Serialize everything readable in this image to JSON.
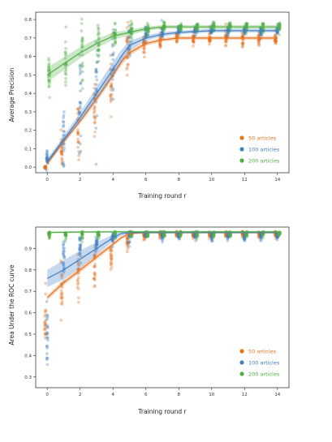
{
  "colors": {
    "s50": "#e8711c",
    "s100": "#3f7fc3",
    "s200": "#4fae43"
  },
  "chart_data": [
    {
      "type": "scatter",
      "title": "",
      "xlabel": "Training round r",
      "ylabel": "Average Precision",
      "xlim": [
        -0.7,
        14.7
      ],
      "ylim": [
        -0.03,
        0.84
      ],
      "xticks": [
        "0",
        "2",
        "4",
        "6",
        "8",
        "10",
        "12",
        "14"
      ],
      "xtick_values": [
        0,
        2,
        4,
        6,
        8,
        10,
        12,
        14
      ],
      "yticks": [
        "0.0",
        "0.1",
        "0.2",
        "0.3",
        "0.4",
        "0.5",
        "0.6",
        "0.7",
        "0.8"
      ],
      "ytick_values": [
        0.0,
        0.1,
        0.2,
        0.3,
        0.4,
        0.5,
        0.6,
        0.7,
        0.8
      ],
      "grid": false,
      "legend_position": "lower-right",
      "series": [
        {
          "name": "50 articles",
          "color": "#e8711c",
          "x": [
            0,
            1,
            2,
            3,
            4,
            5,
            6,
            7,
            8,
            9,
            10,
            11,
            12,
            13,
            14
          ],
          "center": [
            0.0,
            0.1,
            0.2,
            0.3,
            0.45,
            0.62,
            0.67,
            0.69,
            0.7,
            0.7,
            0.7,
            0.7,
            0.7,
            0.7,
            0.7
          ],
          "spread": [
            0.01,
            0.1,
            0.16,
            0.2,
            0.2,
            0.14,
            0.06,
            0.05,
            0.04,
            0.04,
            0.04,
            0.04,
            0.04,
            0.04,
            0.04
          ],
          "trend_x": [
            0,
            1,
            2,
            3,
            4,
            4.5,
            5,
            6,
            7,
            8,
            10,
            12,
            14
          ],
          "trend_y": [
            0.02,
            0.14,
            0.25,
            0.37,
            0.5,
            0.57,
            0.62,
            0.67,
            0.69,
            0.7,
            0.7,
            0.7,
            0.7
          ],
          "band": [
            0.012,
            0.014,
            0.016,
            0.018,
            0.02,
            0.02,
            0.016,
            0.012,
            0.01,
            0.01,
            0.01,
            0.01,
            0.01
          ]
        },
        {
          "name": "100 articles",
          "color": "#3f7fc3",
          "x": [
            0,
            1,
            2,
            3,
            4,
            5,
            6,
            7,
            8,
            9,
            10,
            11,
            12,
            13,
            14
          ],
          "center": [
            0.05,
            0.2,
            0.35,
            0.45,
            0.55,
            0.68,
            0.72,
            0.73,
            0.74,
            0.74,
            0.74,
            0.74,
            0.74,
            0.74,
            0.74
          ],
          "spread": [
            0.04,
            0.2,
            0.25,
            0.26,
            0.2,
            0.1,
            0.05,
            0.04,
            0.03,
            0.03,
            0.03,
            0.03,
            0.03,
            0.03,
            0.03
          ],
          "trend_x": [
            0,
            1,
            2,
            3,
            4,
            4.5,
            5,
            6,
            7,
            8,
            10,
            12,
            14
          ],
          "trend_y": [
            0.03,
            0.15,
            0.27,
            0.4,
            0.53,
            0.6,
            0.66,
            0.7,
            0.72,
            0.73,
            0.74,
            0.74,
            0.74
          ],
          "band": [
            0.015,
            0.02,
            0.025,
            0.035,
            0.04,
            0.035,
            0.025,
            0.015,
            0.012,
            0.01,
            0.01,
            0.01,
            0.01
          ]
        },
        {
          "name": "200 articles",
          "color": "#4fae43",
          "x": [
            0,
            1,
            2,
            3,
            4,
            5,
            6,
            7,
            8,
            9,
            10,
            11,
            12,
            13,
            14
          ],
          "center": [
            0.5,
            0.56,
            0.6,
            0.65,
            0.7,
            0.73,
            0.75,
            0.76,
            0.76,
            0.76,
            0.76,
            0.76,
            0.76,
            0.76,
            0.76
          ],
          "spread": [
            0.12,
            0.15,
            0.15,
            0.12,
            0.08,
            0.05,
            0.04,
            0.03,
            0.03,
            0.03,
            0.03,
            0.03,
            0.03,
            0.03,
            0.03
          ],
          "trend_x": [
            0,
            1,
            2,
            3,
            4,
            5,
            6,
            7,
            8,
            10,
            12,
            14
          ],
          "trend_y": [
            0.5,
            0.56,
            0.62,
            0.67,
            0.71,
            0.73,
            0.75,
            0.76,
            0.76,
            0.76,
            0.76,
            0.76
          ],
          "band": [
            0.04,
            0.035,
            0.03,
            0.025,
            0.02,
            0.015,
            0.012,
            0.01,
            0.01,
            0.01,
            0.01,
            0.01
          ]
        }
      ]
    },
    {
      "type": "scatter",
      "title": "",
      "xlabel": "Training round r",
      "ylabel": "Area Under the ROC curve",
      "xlim": [
        -0.7,
        14.7
      ],
      "ylim": [
        0.25,
        1.0
      ],
      "xticks": [
        "0",
        "2",
        "4",
        "6",
        "8",
        "10",
        "12",
        "14"
      ],
      "xtick_values": [
        0,
        2,
        4,
        6,
        8,
        10,
        12,
        14
      ],
      "yticks": [
        "0.3",
        "0.4",
        "0.5",
        "0.6",
        "0.7",
        "0.8",
        "0.9"
      ],
      "ytick_values": [
        0.3,
        0.4,
        0.5,
        0.6,
        0.7,
        0.8,
        0.9
      ],
      "grid": false,
      "legend_position": "lower-right",
      "series": [
        {
          "name": "50 articles",
          "color": "#e8711c",
          "x": [
            0,
            1,
            2,
            3,
            4,
            5,
            6,
            7,
            8,
            9,
            10,
            11,
            12,
            13,
            14
          ],
          "center": [
            0.55,
            0.7,
            0.76,
            0.82,
            0.88,
            0.93,
            0.96,
            0.97,
            0.97,
            0.97,
            0.97,
            0.97,
            0.97,
            0.97,
            0.97
          ],
          "spread": [
            0.16,
            0.14,
            0.12,
            0.1,
            0.07,
            0.04,
            0.02,
            0.02,
            0.02,
            0.02,
            0.02,
            0.02,
            0.02,
            0.02,
            0.02
          ],
          "trend_x": [
            0,
            1,
            2,
            3,
            4,
            4.5,
            5,
            6,
            7,
            8,
            10,
            12,
            14
          ],
          "trend_y": [
            0.67,
            0.74,
            0.8,
            0.86,
            0.92,
            0.95,
            0.97,
            0.975,
            0.975,
            0.975,
            0.975,
            0.975,
            0.975
          ],
          "band": [
            0.012,
            0.012,
            0.012,
            0.012,
            0.01,
            0.008,
            0.006,
            0.005,
            0.005,
            0.005,
            0.005,
            0.005,
            0.005
          ]
        },
        {
          "name": "100 articles",
          "color": "#3f7fc3",
          "x": [
            0,
            1,
            2,
            3,
            4,
            5,
            6,
            7,
            8,
            9,
            10,
            11,
            12,
            13,
            14
          ],
          "center": [
            0.45,
            0.85,
            0.9,
            0.93,
            0.95,
            0.96,
            0.97,
            0.96,
            0.96,
            0.96,
            0.96,
            0.96,
            0.96,
            0.96,
            0.96
          ],
          "spread": [
            0.18,
            0.08,
            0.06,
            0.04,
            0.03,
            0.03,
            0.02,
            0.02,
            0.02,
            0.02,
            0.02,
            0.02,
            0.02,
            0.02,
            0.02
          ],
          "trend_x": [
            0,
            1,
            2,
            3,
            4,
            4.5,
            5,
            6,
            7,
            8,
            10,
            12,
            14
          ],
          "trend_y": [
            0.76,
            0.8,
            0.85,
            0.9,
            0.95,
            0.97,
            0.975,
            0.975,
            0.975,
            0.975,
            0.975,
            0.975,
            0.975
          ],
          "band": [
            0.04,
            0.045,
            0.04,
            0.03,
            0.015,
            0.01,
            0.006,
            0.005,
            0.005,
            0.005,
            0.005,
            0.005,
            0.005
          ]
        },
        {
          "name": "200 articles",
          "color": "#4fae43",
          "x": [
            0,
            1,
            2,
            3,
            4,
            5,
            6,
            7,
            8,
            9,
            10,
            11,
            12,
            13,
            14
          ],
          "center": [
            0.97,
            0.97,
            0.97,
            0.97,
            0.97,
            0.97,
            0.97,
            0.97,
            0.97,
            0.97,
            0.97,
            0.97,
            0.97,
            0.97,
            0.97
          ],
          "spread": [
            0.02,
            0.03,
            0.03,
            0.03,
            0.02,
            0.02,
            0.02,
            0.02,
            0.02,
            0.02,
            0.02,
            0.02,
            0.02,
            0.02,
            0.02
          ],
          "trend_x": [
            0,
            2,
            4,
            6,
            8,
            10,
            12,
            14
          ],
          "trend_y": [
            0.975,
            0.977,
            0.978,
            0.978,
            0.978,
            0.978,
            0.978,
            0.978
          ],
          "band": [
            0.004,
            0.004,
            0.004,
            0.004,
            0.004,
            0.004,
            0.004,
            0.004
          ]
        }
      ]
    }
  ]
}
